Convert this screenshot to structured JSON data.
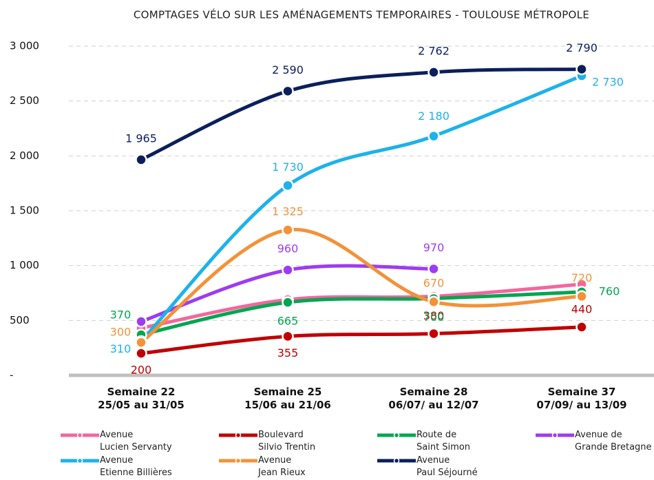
{
  "chart_data": {
    "type": "line",
    "title": "COMPTAGES VÉLO SUR LES AMÉNAGEMENTS TEMPORAIRES - TOULOUSE MÉTROPOLE",
    "categories": [
      "Semaine 22\n25/05 au 31/05",
      "Semaine 25\n15/06 au 21/06",
      "Semaine 28\n06/07/ au 12/07",
      "Semaine 37\n07/09/ au 13/09"
    ],
    "ylim": [
      0,
      3000
    ],
    "yticks": [
      {
        "value": 0,
        "label": "-"
      },
      500,
      {
        "value": 1000,
        "label": "1 000"
      },
      {
        "value": 1500,
        "label": "1 500"
      },
      {
        "value": 2000,
        "label": "2 000"
      },
      {
        "value": 2500,
        "label": "2 500"
      },
      {
        "value": 3000,
        "label": "3 000"
      }
    ],
    "grid": true,
    "series": [
      {
        "name": "Avenue\nLucien Servanty",
        "color": "#f2679f",
        "values": [
          430,
          690,
          720,
          830
        ]
      },
      {
        "name": "Boulevard\nSilvio Trentin",
        "color": "#c00000",
        "values": [
          200,
          355,
          380,
          440
        ],
        "value_labels": [
          "200",
          "355",
          "380",
          "440"
        ]
      },
      {
        "name": "Route de\nSaint Simon",
        "color": "#00a651",
        "values": [
          370,
          665,
          700,
          760
        ],
        "value_labels": [
          "370",
          "665",
          "700",
          "760"
        ]
      },
      {
        "name": "Avenue de\nGrande Bretagne",
        "color": "#9d3cf0",
        "values": [
          490,
          960,
          970,
          null
        ],
        "value_labels": [
          null,
          "960",
          "970",
          null
        ]
      },
      {
        "name": "Avenue\nEtienne Billières",
        "color": "#1db2ea",
        "values": [
          310,
          1730,
          2180,
          2730
        ],
        "value_labels": [
          "310",
          "1 730",
          "2 180",
          "2 730"
        ]
      },
      {
        "name": "Avenue\nJean Rieux",
        "color": "#f39238",
        "values": [
          300,
          1325,
          670,
          720
        ],
        "value_labels": [
          "300",
          "1 325",
          "670",
          "720"
        ]
      },
      {
        "name": "Avenue\nPaul Séjourné",
        "color": "#0b1f5c",
        "values": [
          1965,
          2590,
          2762,
          2790
        ],
        "value_labels": [
          "1 965",
          "2 590",
          "2 762",
          "2 790"
        ]
      }
    ]
  }
}
